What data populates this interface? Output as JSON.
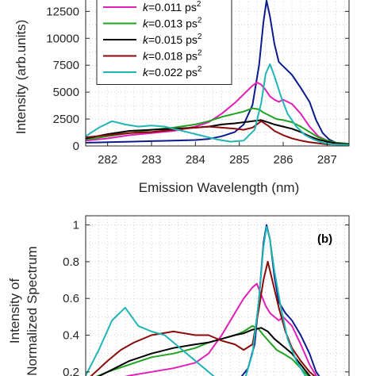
{
  "chart_data": [
    {
      "type": "line",
      "panel_label": "",
      "title": "",
      "xlabel": "Emission Wavelength (nm)",
      "ylabel": "Intensity (arb.units)",
      "xlim": [
        281.5,
        287.5
      ],
      "ylim": [
        0,
        14000
      ],
      "xticks": [
        282,
        283,
        284,
        285,
        286,
        287
      ],
      "xtick_labels": [
        "282",
        "283",
        "284",
        "285",
        "286",
        "287"
      ],
      "yticks": [
        0,
        2500,
        5000,
        7500,
        10000,
        12500
      ],
      "ytick_labels": [
        "0",
        "2500",
        "5000",
        "7500",
        "10000",
        "12500"
      ],
      "grid": true,
      "legend_position": "top-left",
      "series": [
        {
          "name": "",
          "color": "#0b1a8c",
          "x": [
            281.5,
            282,
            282.5,
            283,
            283.5,
            284,
            284.3,
            284.6,
            284.9,
            285.1,
            285.3,
            285.45,
            285.55,
            285.62,
            285.7,
            285.8,
            285.9,
            286.05,
            286.2,
            286.4,
            286.6,
            286.75,
            286.9,
            287.05,
            287.2,
            287.35,
            287.5
          ],
          "y": [
            300,
            350,
            400,
            450,
            500,
            550,
            650,
            900,
            1300,
            2000,
            3800,
            7500,
            11500,
            13500,
            12000,
            9500,
            7800,
            7200,
            6600,
            5400,
            4100,
            2400,
            1200,
            600,
            300,
            200,
            150
          ]
        },
        {
          "name": "k=0.011 ps²",
          "color": "#e020b8",
          "x": [
            281.5,
            282,
            282.5,
            283,
            283.5,
            284,
            284.3,
            284.6,
            284.9,
            285.1,
            285.3,
            285.4,
            285.5,
            285.6,
            285.7,
            285.8,
            285.9,
            286.0,
            286.2,
            286.4,
            286.6,
            286.8,
            287.0,
            287.2,
            287.5
          ],
          "y": [
            500,
            700,
            1000,
            1200,
            1400,
            1800,
            2200,
            3000,
            4000,
            4800,
            5600,
            5900,
            5700,
            5200,
            4600,
            4300,
            4100,
            4300,
            3900,
            3000,
            1800,
            900,
            500,
            300,
            200
          ]
        },
        {
          "name": "k=0.013 ps²",
          "color": "#1fa31f",
          "x": [
            281.5,
            282,
            282.5,
            283,
            283.5,
            284,
            284.3,
            284.6,
            284.9,
            285.1,
            285.3,
            285.45,
            285.55,
            285.7,
            285.85,
            286,
            286.2,
            286.4,
            286.6,
            286.8,
            287.0,
            287.2,
            287.5
          ],
          "y": [
            600,
            900,
            1200,
            1500,
            1700,
            2000,
            2300,
            2700,
            3000,
            3200,
            3500,
            3400,
            3100,
            2800,
            2500,
            2400,
            2200,
            1800,
            1300,
            800,
            500,
            300,
            200
          ]
        },
        {
          "name": "k=0.015 ps²",
          "color": "#000000",
          "x": [
            281.5,
            282,
            282.5,
            283,
            283.5,
            284,
            284.3,
            284.6,
            284.9,
            285.1,
            285.3,
            285.5,
            285.65,
            285.8,
            286.0,
            286.2,
            286.4,
            286.6,
            286.8,
            287.0,
            287.2,
            287.5
          ],
          "y": [
            700,
            1100,
            1400,
            1500,
            1600,
            1700,
            1800,
            2000,
            2100,
            2200,
            2300,
            2400,
            2200,
            2000,
            1800,
            1600,
            1300,
            900,
            600,
            400,
            250,
            150
          ]
        },
        {
          "name": "k=0.018 ps²",
          "color": "#8b0a0a",
          "x": [
            281.5,
            282,
            282.5,
            283,
            283.5,
            284,
            284.3,
            284.6,
            284.9,
            285.1,
            285.3,
            285.5,
            285.65,
            285.8,
            286.0,
            286.2,
            286.4,
            286.6,
            286.8,
            287.0,
            287.5
          ],
          "y": [
            800,
            1000,
            1200,
            1300,
            1500,
            1700,
            1800,
            1700,
            1600,
            1500,
            1700,
            2300,
            1900,
            1400,
            1000,
            700,
            500,
            350,
            250,
            150,
            100
          ]
        },
        {
          "name": "k=0.022 ps²",
          "color": "#20b5b5",
          "x": [
            281.5,
            281.8,
            282.1,
            282.4,
            282.7,
            283.0,
            283.3,
            283.6,
            283.9,
            284.2,
            284.5,
            284.8,
            285.1,
            285.35,
            285.5,
            285.6,
            285.7,
            285.8,
            285.95,
            286.1,
            286.3,
            286.5,
            286.7,
            286.9,
            287.1,
            287.5
          ],
          "y": [
            900,
            1700,
            2300,
            2000,
            1800,
            1900,
            1800,
            1500,
            1200,
            900,
            600,
            400,
            500,
            1500,
            4000,
            6700,
            7600,
            6500,
            4600,
            3000,
            1800,
            1000,
            600,
            300,
            150,
            100
          ]
        }
      ]
    },
    {
      "type": "line",
      "panel_label": "(b)",
      "title": "",
      "xlabel": "",
      "ylabel": "Intensity of Normalized Spectrum",
      "ylabel_lines": [
        "Intensity of",
        "Normalized Spectrum"
      ],
      "xlim": [
        281.5,
        287.5
      ],
      "ylim": [
        0.1,
        1.05
      ],
      "yticks": [
        0.2,
        0.4,
        0.6,
        0.8,
        1
      ],
      "ytick_labels": [
        "0.2",
        "0.4",
        "0.6",
        "0.8",
        "1"
      ],
      "grid": true,
      "series": [
        {
          "name": "",
          "color": "#0b1a8c",
          "x": [
            281.5,
            282,
            282.5,
            283,
            283.5,
            284,
            284.5,
            284.8,
            285.0,
            285.2,
            285.35,
            285.45,
            285.55,
            285.62,
            285.7,
            285.8,
            285.9,
            286.05,
            286.2,
            286.4,
            286.6,
            286.75,
            286.9,
            287.05,
            287.2,
            287.35,
            287.5
          ],
          "y": [
            0.12,
            0.12,
            0.13,
            0.13,
            0.13,
            0.13,
            0.12,
            0.14,
            0.16,
            0.22,
            0.35,
            0.6,
            0.9,
            1.0,
            0.92,
            0.72,
            0.58,
            0.52,
            0.48,
            0.4,
            0.3,
            0.2,
            0.15,
            0.12,
            0.11,
            0.12,
            0.11
          ]
        },
        {
          "name": "",
          "color": "#e020b8",
          "x": [
            281.5,
            282,
            282.5,
            283,
            283.5,
            284,
            284.3,
            284.6,
            284.9,
            285.1,
            285.3,
            285.4,
            285.5,
            285.6,
            285.7,
            285.8,
            285.9,
            286.0,
            286.2,
            286.4,
            286.6,
            286.8,
            287.0,
            287.2,
            287.5
          ],
          "y": [
            0.13,
            0.15,
            0.18,
            0.2,
            0.22,
            0.25,
            0.3,
            0.4,
            0.52,
            0.6,
            0.66,
            0.68,
            0.62,
            0.56,
            0.52,
            0.5,
            0.48,
            0.5,
            0.45,
            0.35,
            0.24,
            0.16,
            0.12,
            0.11,
            0.1
          ]
        },
        {
          "name": "",
          "color": "#1fa31f",
          "x": [
            281.5,
            282,
            282.5,
            283,
            283.5,
            284,
            284.3,
            284.6,
            284.9,
            285.1,
            285.3,
            285.45,
            285.55,
            285.7,
            285.85,
            286,
            286.2,
            286.4,
            286.6,
            286.8,
            287.0,
            287.2,
            287.5
          ],
          "y": [
            0.15,
            0.2,
            0.24,
            0.28,
            0.3,
            0.33,
            0.36,
            0.38,
            0.4,
            0.42,
            0.45,
            0.43,
            0.4,
            0.36,
            0.32,
            0.3,
            0.27,
            0.22,
            0.17,
            0.13,
            0.11,
            0.1,
            0.1
          ]
        },
        {
          "name": "",
          "color": "#000000",
          "x": [
            281.5,
            282,
            282.5,
            283,
            283.5,
            284,
            284.3,
            284.6,
            284.9,
            285.1,
            285.3,
            285.5,
            285.65,
            285.8,
            286.0,
            286.2,
            286.4,
            286.6,
            286.8,
            287.0,
            287.2,
            287.5
          ],
          "y": [
            0.14,
            0.2,
            0.26,
            0.3,
            0.33,
            0.35,
            0.36,
            0.38,
            0.4,
            0.41,
            0.43,
            0.44,
            0.42,
            0.38,
            0.34,
            0.3,
            0.24,
            0.18,
            0.14,
            0.12,
            0.11,
            0.1
          ]
        },
        {
          "name": "",
          "color": "#8b0a0a",
          "x": [
            281.5,
            282,
            282.3,
            282.6,
            283,
            283.5,
            284,
            284.3,
            284.6,
            284.9,
            285.1,
            285.3,
            285.45,
            285.55,
            285.65,
            285.75,
            285.9,
            286.05,
            286.2,
            286.4,
            286.6,
            286.8,
            287.0,
            287.2,
            287.5
          ],
          "y": [
            0.15,
            0.26,
            0.32,
            0.36,
            0.4,
            0.42,
            0.4,
            0.4,
            0.37,
            0.35,
            0.32,
            0.35,
            0.55,
            0.7,
            0.8,
            0.7,
            0.55,
            0.42,
            0.33,
            0.26,
            0.2,
            0.16,
            0.13,
            0.11,
            0.1
          ]
        },
        {
          "name": "",
          "color": "#20b5b5",
          "x": [
            281.5,
            281.8,
            282.1,
            282.4,
            282.7,
            283.0,
            283.3,
            283.6,
            283.9,
            284.2,
            284.5,
            284.8,
            285.1,
            285.3,
            285.45,
            285.55,
            285.62,
            285.7,
            285.8,
            285.95,
            286.1,
            286.3,
            286.5,
            286.7,
            286.9,
            287.1,
            287.3,
            287.5
          ],
          "y": [
            0.18,
            0.32,
            0.48,
            0.55,
            0.45,
            0.42,
            0.4,
            0.34,
            0.28,
            0.22,
            0.16,
            0.12,
            0.14,
            0.3,
            0.6,
            0.88,
            0.99,
            0.92,
            0.75,
            0.55,
            0.38,
            0.26,
            0.18,
            0.14,
            0.12,
            0.11,
            0.1,
            0.1
          ]
        }
      ]
    }
  ]
}
